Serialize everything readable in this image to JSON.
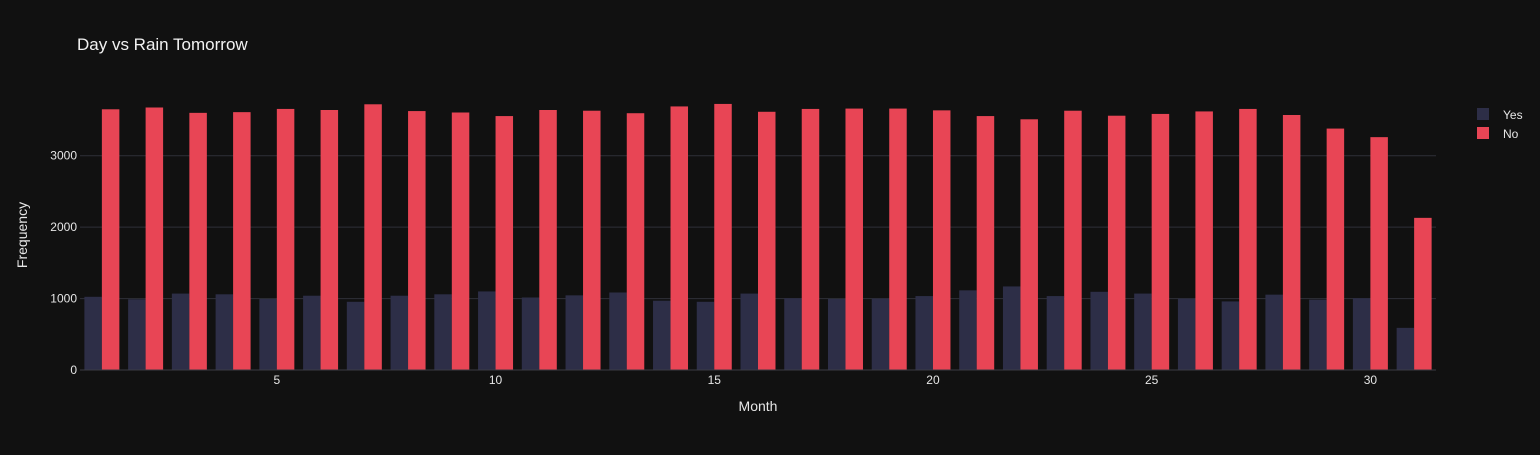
{
  "chart_data": {
    "type": "bar",
    "title": "Day vs Rain Tomorrow",
    "xlabel": "Month",
    "ylabel": "Frequency",
    "x": [
      1,
      2,
      3,
      4,
      5,
      6,
      7,
      8,
      9,
      10,
      11,
      12,
      13,
      14,
      15,
      16,
      17,
      18,
      19,
      20,
      21,
      22,
      23,
      24,
      25,
      26,
      27,
      28,
      29,
      30,
      31
    ],
    "xlim": [
      0.5,
      31.5
    ],
    "ylim": [
      0,
      3850
    ],
    "xticks": [
      5,
      10,
      15,
      20,
      25,
      30
    ],
    "yticks": [
      0,
      1000,
      2000,
      3000
    ],
    "grid": true,
    "legend_position": "top-right",
    "series": [
      {
        "name": "Yes",
        "color": "#2d2e47",
        "values": [
          1025,
          990,
          1070,
          1060,
          995,
          1040,
          955,
          1040,
          1060,
          1100,
          1015,
          1045,
          1085,
          970,
          955,
          1070,
          1005,
          995,
          1000,
          1035,
          1115,
          1170,
          1035,
          1095,
          1070,
          1000,
          960,
          1055,
          985,
          1005,
          590
        ]
      },
      {
        "name": "No",
        "color": "#e84555",
        "values": [
          3650,
          3675,
          3600,
          3610,
          3655,
          3640,
          3720,
          3625,
          3605,
          3555,
          3640,
          3630,
          3595,
          3690,
          3725,
          3615,
          3655,
          3660,
          3660,
          3635,
          3555,
          3510,
          3630,
          3560,
          3585,
          3620,
          3655,
          3570,
          3380,
          3260,
          2130
        ]
      }
    ]
  }
}
